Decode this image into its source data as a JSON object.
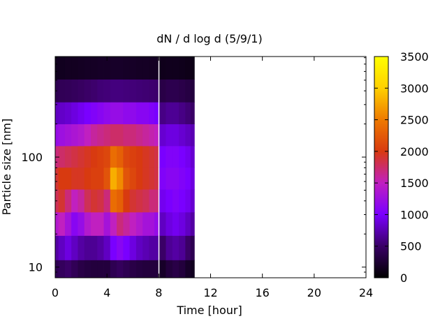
{
  "chart_data": {
    "type": "heatmap",
    "title": "dN / d log d (5/9/1)",
    "xlabel": "Time [hour]",
    "ylabel": "Particle size [nm]",
    "x_range": [
      0,
      24
    ],
    "x_ticks": [
      0,
      4,
      8,
      12,
      16,
      20,
      24
    ],
    "x_tick_labels": [
      "0",
      "4",
      "8",
      "12",
      "16",
      "20",
      "24"
    ],
    "y_scale": "log",
    "y_range": [
      8,
      820
    ],
    "y_ticks": [
      10,
      100
    ],
    "y_tick_labels": [
      "10",
      "100"
    ],
    "colorbar": {
      "range": [
        0,
        3500
      ],
      "ticks": [
        0,
        500,
        1000,
        1500,
        2000,
        2500,
        3000,
        3500
      ],
      "tick_labels": [
        "0",
        "500",
        "1000",
        "1500",
        "2000",
        "2500",
        "3000",
        "3500"
      ],
      "palette": [
        "#000000",
        "#3a0066",
        "#7a00ff",
        "#c020c0",
        "#d83a10",
        "#ee7a00",
        "#ffd000",
        "#ffff00"
      ]
    },
    "size_bins_nm": [
      9,
      15,
      25,
      40,
      65,
      100,
      160,
      250,
      400,
      650
    ],
    "segments": [
      {
        "times_hour": [
          0.0,
          0.5,
          1.0,
          1.5,
          2.0,
          2.5,
          3.0,
          3.5,
          4.0,
          4.5,
          5.0,
          5.5,
          6.0,
          6.5,
          7.0,
          7.5,
          7.8
        ],
        "values": [
          [
            400,
            450,
            500,
            420,
            350,
            320,
            300,
            300,
            300,
            400,
            450,
            400,
            350,
            320,
            300,
            300,
            300
          ],
          [
            700,
            800,
            900,
            800,
            700,
            650,
            650,
            700,
            800,
            1000,
            1100,
            1000,
            900,
            800,
            750,
            700,
            700
          ],
          [
            1400,
            1500,
            1300,
            1100,
            1200,
            1400,
            1500,
            1500,
            1300,
            1500,
            1700,
            1600,
            1500,
            1400,
            1300,
            1300,
            1200
          ],
          [
            1800,
            1900,
            1700,
            1500,
            1600,
            1800,
            1900,
            1850,
            1700,
            2400,
            2300,
            2000,
            1900,
            1850,
            1800,
            1700,
            1700
          ],
          [
            1900,
            2000,
            2000,
            1950,
            1950,
            2000,
            2050,
            2050,
            2200,
            2800,
            2600,
            2200,
            2100,
            2000,
            1950,
            1900,
            1850
          ],
          [
            1700,
            1750,
            1800,
            1850,
            1900,
            1950,
            2000,
            2050,
            2100,
            2400,
            2300,
            2100,
            2050,
            2000,
            1950,
            1900,
            1850
          ],
          [
            1200,
            1250,
            1300,
            1350,
            1400,
            1500,
            1600,
            1650,
            1700,
            1750,
            1750,
            1700,
            1700,
            1650,
            1600,
            1550,
            1500
          ],
          [
            800,
            820,
            850,
            900,
            950,
            1000,
            1050,
            1100,
            1150,
            1200,
            1200,
            1150,
            1150,
            1100,
            1100,
            1050,
            1000
          ],
          [
            400,
            420,
            430,
            450,
            470,
            500,
            520,
            550,
            560,
            580,
            580,
            570,
            560,
            550,
            540,
            530,
            520
          ],
          [
            150,
            150,
            160,
            160,
            170,
            180,
            180,
            190,
            190,
            200,
            200,
            190,
            190,
            180,
            180,
            170,
            170
          ]
        ]
      },
      {
        "times_hour": [
          8.3,
          8.8,
          9.3,
          9.8,
          10.3,
          10.6
        ],
        "values": [
          [
            200,
            300,
            350,
            300,
            200,
            150
          ],
          [
            500,
            650,
            700,
            650,
            500,
            400
          ],
          [
            800,
            900,
            950,
            900,
            800,
            700
          ],
          [
            950,
            1000,
            1050,
            1000,
            950,
            850
          ],
          [
            1050,
            1100,
            1100,
            1050,
            1000,
            900
          ],
          [
            1000,
            1050,
            1050,
            1000,
            950,
            850
          ],
          [
            850,
            900,
            900,
            850,
            800,
            750
          ],
          [
            600,
            650,
            650,
            600,
            550,
            500
          ],
          [
            350,
            380,
            380,
            360,
            330,
            300
          ],
          [
            130,
            140,
            140,
            130,
            120,
            110
          ]
        ]
      }
    ]
  }
}
